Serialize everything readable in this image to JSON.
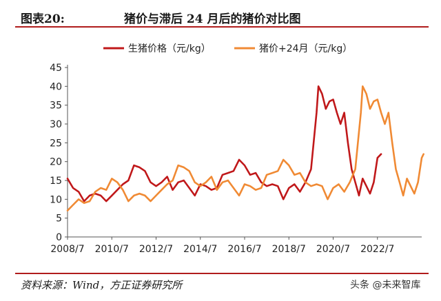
{
  "header": {
    "label": "图表20:",
    "title": "猪价与滞后 24 月后的猪价对比图"
  },
  "footer": {
    "source": "资料来源：Wind，方正证券研究所",
    "watermark": "头条 @未来智库"
  },
  "colors": {
    "series1": "#c0181a",
    "series2": "#f08a34",
    "accent": "#b01c1c"
  },
  "chart_data": {
    "type": "line",
    "ylim": [
      0,
      45
    ],
    "yticks": [
      0,
      5,
      10,
      15,
      20,
      25,
      30,
      35,
      40,
      45
    ],
    "xlim": [
      "2008/7",
      "2024/7"
    ],
    "xticks": [
      "2008/7",
      "2010/7",
      "2012/7",
      "2014/7",
      "2016/7",
      "2018/7",
      "2020/7",
      "2022/7"
    ],
    "grid": false,
    "legend_position": "top",
    "series": [
      {
        "name": "生猪价格（元/kg）",
        "color": "#c0181a",
        "points": [
          [
            "2008/7",
            15.5
          ],
          [
            "2008/10",
            13
          ],
          [
            "2009/1",
            12
          ],
          [
            "2009/4",
            9.5
          ],
          [
            "2009/7",
            11
          ],
          [
            "2009/10",
            11.5
          ],
          [
            "2010/1",
            11
          ],
          [
            "2010/4",
            9.5
          ],
          [
            "2010/7",
            11
          ],
          [
            "2010/10",
            12.5
          ],
          [
            "2011/1",
            14
          ],
          [
            "2011/4",
            15
          ],
          [
            "2011/7",
            19
          ],
          [
            "2011/10",
            18.5
          ],
          [
            "2012/1",
            17.5
          ],
          [
            "2012/4",
            14.5
          ],
          [
            "2012/7",
            13.5
          ],
          [
            "2012/10",
            14.5
          ],
          [
            "2013/1",
            16
          ],
          [
            "2013/4",
            12.5
          ],
          [
            "2013/7",
            14.5
          ],
          [
            "2013/10",
            15
          ],
          [
            "2014/1",
            13
          ],
          [
            "2014/4",
            11
          ],
          [
            "2014/7",
            14
          ],
          [
            "2014/10",
            13.5
          ],
          [
            "2015/1",
            12.5
          ],
          [
            "2015/4",
            13
          ],
          [
            "2015/7",
            16.5
          ],
          [
            "2015/10",
            17
          ],
          [
            "2016/1",
            17.5
          ],
          [
            "2016/4",
            20.5
          ],
          [
            "2016/7",
            19
          ],
          [
            "2016/10",
            16.5
          ],
          [
            "2017/1",
            17
          ],
          [
            "2017/4",
            14.5
          ],
          [
            "2017/7",
            13.5
          ],
          [
            "2017/10",
            14
          ],
          [
            "2018/1",
            13.5
          ],
          [
            "2018/4",
            10
          ],
          [
            "2018/7",
            13
          ],
          [
            "2018/10",
            14
          ],
          [
            "2019/1",
            12
          ],
          [
            "2019/4",
            14.5
          ],
          [
            "2019/7",
            18
          ],
          [
            "2019/10",
            33
          ],
          [
            "2019/11",
            40
          ],
          [
            "2020/1",
            38
          ],
          [
            "2020/3",
            34
          ],
          [
            "2020/5",
            36
          ],
          [
            "2020/7",
            36.5
          ],
          [
            "2020/9",
            33
          ],
          [
            "2020/11",
            30
          ],
          [
            "2021/1",
            33
          ],
          [
            "2021/3",
            25
          ],
          [
            "2021/5",
            18
          ],
          [
            "2021/7",
            14.5
          ],
          [
            "2021/9",
            11
          ],
          [
            "2021/11",
            15.5
          ],
          [
            "2022/1",
            13.5
          ],
          [
            "2022/3",
            11.5
          ],
          [
            "2022/5",
            14.5
          ],
          [
            "2022/7",
            21
          ],
          [
            "2022/9",
            22
          ]
        ]
      },
      {
        "name": "猪价+24月（元/kg）",
        "color": "#f08a34",
        "points": [
          [
            "2008/7",
            7
          ],
          [
            "2008/10",
            8.5
          ],
          [
            "2009/1",
            10
          ],
          [
            "2009/4",
            9
          ],
          [
            "2009/7",
            9.5
          ],
          [
            "2009/10",
            12
          ],
          [
            "2010/1",
            13
          ],
          [
            "2010/4",
            12.5
          ],
          [
            "2010/7",
            15.5
          ],
          [
            "2010/10",
            14.5
          ],
          [
            "2011/1",
            12.5
          ],
          [
            "2011/4",
            9.5
          ],
          [
            "2011/7",
            11
          ],
          [
            "2011/10",
            11.5
          ],
          [
            "2012/1",
            11
          ],
          [
            "2012/4",
            9.5
          ],
          [
            "2012/7",
            11
          ],
          [
            "2012/10",
            12.5
          ],
          [
            "2013/1",
            14
          ],
          [
            "2013/4",
            15
          ],
          [
            "2013/7",
            19
          ],
          [
            "2013/10",
            18.5
          ],
          [
            "2014/1",
            17.5
          ],
          [
            "2014/4",
            14.5
          ],
          [
            "2014/7",
            13.5
          ],
          [
            "2014/10",
            14.5
          ],
          [
            "2015/1",
            16
          ],
          [
            "2015/4",
            12.5
          ],
          [
            "2015/7",
            14.5
          ],
          [
            "2015/10",
            15
          ],
          [
            "2016/1",
            13
          ],
          [
            "2016/4",
            11
          ],
          [
            "2016/7",
            14
          ],
          [
            "2016/10",
            13.5
          ],
          [
            "2017/1",
            12.5
          ],
          [
            "2017/4",
            13
          ],
          [
            "2017/7",
            16.5
          ],
          [
            "2017/10",
            17
          ],
          [
            "2018/1",
            17.5
          ],
          [
            "2018/4",
            20.5
          ],
          [
            "2018/7",
            19
          ],
          [
            "2018/10",
            16.5
          ],
          [
            "2019/1",
            17
          ],
          [
            "2019/4",
            14.5
          ],
          [
            "2019/7",
            13.5
          ],
          [
            "2019/10",
            14
          ],
          [
            "2020/1",
            13.5
          ],
          [
            "2020/4",
            10
          ],
          [
            "2020/7",
            13
          ],
          [
            "2020/10",
            14
          ],
          [
            "2021/1",
            12
          ],
          [
            "2021/4",
            14.5
          ],
          [
            "2021/7",
            18
          ],
          [
            "2021/10",
            33
          ],
          [
            "2021/11",
            40
          ],
          [
            "2022/1",
            38
          ],
          [
            "2022/3",
            34
          ],
          [
            "2022/5",
            36
          ],
          [
            "2022/7",
            36.5
          ],
          [
            "2022/9",
            33
          ],
          [
            "2022/11",
            30
          ],
          [
            "2023/1",
            33
          ],
          [
            "2023/3",
            25
          ],
          [
            "2023/5",
            18
          ],
          [
            "2023/7",
            14.5
          ],
          [
            "2023/9",
            11
          ],
          [
            "2023/11",
            15.5
          ],
          [
            "2024/1",
            13.5
          ],
          [
            "2024/3",
            11.5
          ],
          [
            "2024/5",
            14.5
          ],
          [
            "2024/7",
            21
          ],
          [
            "2024/8",
            22
          ]
        ]
      }
    ]
  }
}
